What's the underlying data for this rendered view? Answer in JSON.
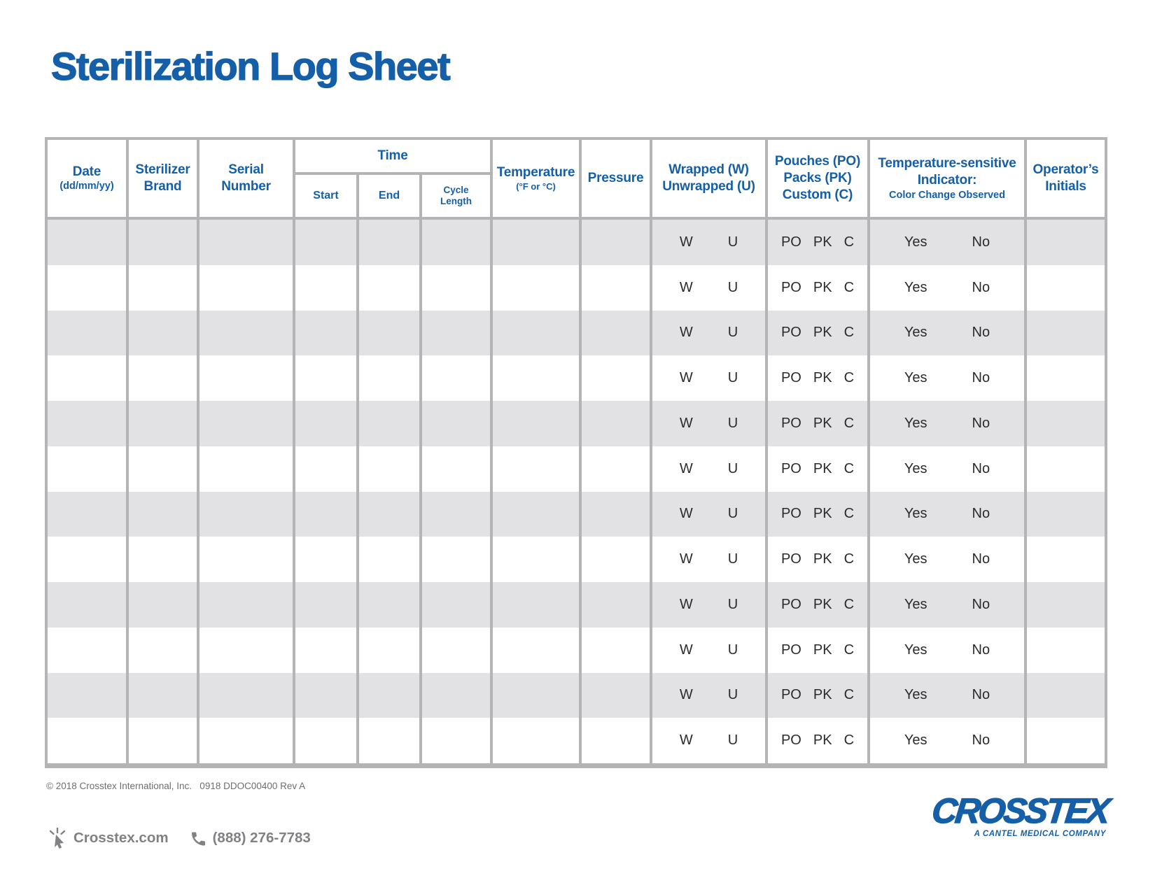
{
  "title": "Sterilization Log Sheet",
  "colors": {
    "brand_blue": "#155fa9",
    "row_shade_gray": "#e2e2e4",
    "grid_border_gray": "#b3b4b6",
    "data_text": "#2b2b2b",
    "footer_gray": "#808184",
    "copyright_gray": "#6d6e71"
  },
  "table": {
    "headers": {
      "date": {
        "line1": "Date",
        "line2": "(dd/mm/yy)"
      },
      "sterilizer_brand": {
        "line1": "Sterilizer",
        "line2": "Brand"
      },
      "serial_number": {
        "line1": "Serial",
        "line2": "Number"
      },
      "time": {
        "label": "Time",
        "start": "Start",
        "end": "End",
        "cycle_line1": "Cycle",
        "cycle_line2": "Length"
      },
      "temperature": {
        "line1": "Temperature",
        "line2": "(°F or °C)"
      },
      "pressure": {
        "label": "Pressure"
      },
      "wrapped": {
        "line1": "Wrapped (W)",
        "line2": "Unwrapped (U)"
      },
      "pouches": {
        "line1": "Pouches (PO)",
        "line2": "Packs (PK)",
        "line3": "Custom (C)"
      },
      "indicator": {
        "line1": "Temperature-sensitive",
        "line2": "Indicator:",
        "line3": "Color Change Observed"
      },
      "operator": {
        "line1": "Operator’s",
        "line2": "Initials"
      }
    },
    "row_options": {
      "wrapped": [
        "W",
        "U"
      ],
      "pouches": [
        "PO",
        "PK",
        "C"
      ],
      "indicator": [
        "Yes",
        "No"
      ]
    },
    "row_count": 12
  },
  "footer": {
    "copyright": "© 2018 Crosstex International, Inc.   0918 DDOC00400 Rev A",
    "website": "Crosstex.com",
    "phone": "(888) 276-7783",
    "logo_name": "CROSSTEX",
    "logo_tagline": "A CANTEL MEDICAL COMPANY"
  }
}
